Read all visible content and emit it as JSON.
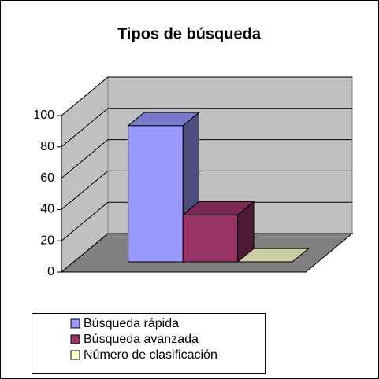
{
  "chart_data": {
    "type": "bar3d",
    "title": "Tipos de búsqueda",
    "series": [
      {
        "name": "Búsqueda rápida",
        "color": "#9999ff",
        "values": [
          87
        ]
      },
      {
        "name": "Búsqueda avanzada",
        "color": "#993366",
        "values": [
          30
        ]
      },
      {
        "name": "Número de clasificación",
        "color": "#ffffcc",
        "values": [
          0
        ]
      }
    ],
    "ylim": [
      0,
      100
    ],
    "yticks": [
      0,
      20,
      40,
      60,
      80,
      100
    ],
    "grid": true,
    "legend": "bottom"
  }
}
